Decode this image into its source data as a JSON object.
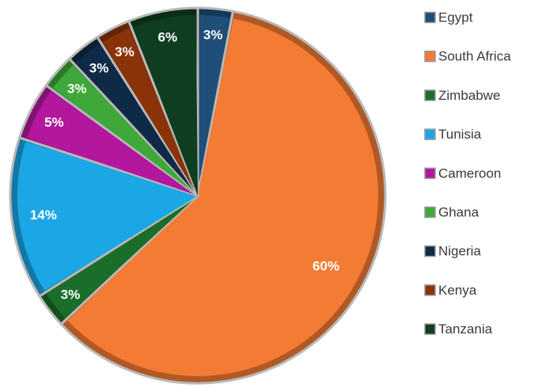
{
  "chart_data": {
    "type": "pie",
    "slices": [
      {
        "label": "Egypt",
        "percent": 3,
        "value_label": "3%",
        "color": "#1f4e79"
      },
      {
        "label": "South Africa",
        "percent": 60,
        "value_label": "60%",
        "color": "#f47b34"
      },
      {
        "label": "Zimbabwe",
        "percent": 3,
        "value_label": "3%",
        "color": "#1b6e2a"
      },
      {
        "label": "Tunisia",
        "percent": 14,
        "value_label": "14%",
        "color": "#1ba7e6"
      },
      {
        "label": "Cameroon",
        "percent": 5,
        "value_label": "5%",
        "color": "#b3179e"
      },
      {
        "label": "Ghana",
        "percent": 3,
        "value_label": "3%",
        "color": "#3ea83a"
      },
      {
        "label": "Nigeria",
        "percent": 3,
        "value_label": "3%",
        "color": "#0f2a47"
      },
      {
        "label": "Kenya",
        "percent": 3,
        "value_label": "3%",
        "color": "#8a3308"
      },
      {
        "label": "Tanzania",
        "percent": 6,
        "value_label": "6%",
        "color": "#0e3d1f"
      }
    ],
    "legend_position": "right",
    "start": "top",
    "direction": "clockwise"
  }
}
